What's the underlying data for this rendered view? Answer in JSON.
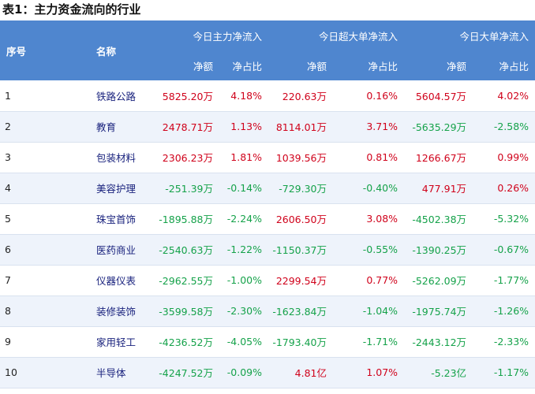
{
  "title": "表1：主力资金流向的行业",
  "colors": {
    "header_bg": "#4f86cf",
    "positive": "#d0021b",
    "negative": "#15a24a",
    "name_text": "#1a237e"
  },
  "header": {
    "index": "序号",
    "name": "名称",
    "groups": [
      "今日主力净流入",
      "今日超大单净流入",
      "今日大单净流入"
    ],
    "sub": [
      "净额",
      "净占比"
    ]
  },
  "rows": [
    {
      "idx": "1",
      "name": "铁路公路",
      "main_net": "5825.20万",
      "main_pct": "4.18%",
      "super_net": "220.63万",
      "super_pct": "0.16%",
      "big_net": "5604.57万",
      "big_pct": "4.02%"
    },
    {
      "idx": "2",
      "name": "教育",
      "main_net": "2478.71万",
      "main_pct": "1.13%",
      "super_net": "8114.01万",
      "super_pct": "3.71%",
      "big_net": "-5635.29万",
      "big_pct": "-2.58%"
    },
    {
      "idx": "3",
      "name": "包装材料",
      "main_net": "2306.23万",
      "main_pct": "1.81%",
      "super_net": "1039.56万",
      "super_pct": "0.81%",
      "big_net": "1266.67万",
      "big_pct": "0.99%"
    },
    {
      "idx": "4",
      "name": "美容护理",
      "main_net": "-251.39万",
      "main_pct": "-0.14%",
      "super_net": "-729.30万",
      "super_pct": "-0.40%",
      "big_net": "477.91万",
      "big_pct": "0.26%"
    },
    {
      "idx": "5",
      "name": "珠宝首饰",
      "main_net": "-1895.88万",
      "main_pct": "-2.24%",
      "super_net": "2606.50万",
      "super_pct": "3.08%",
      "big_net": "-4502.38万",
      "big_pct": "-5.32%"
    },
    {
      "idx": "6",
      "name": "医药商业",
      "main_net": "-2540.63万",
      "main_pct": "-1.22%",
      "super_net": "-1150.37万",
      "super_pct": "-0.55%",
      "big_net": "-1390.25万",
      "big_pct": "-0.67%"
    },
    {
      "idx": "7",
      "name": "仪器仪表",
      "main_net": "-2962.55万",
      "main_pct": "-1.00%",
      "super_net": "2299.54万",
      "super_pct": "0.77%",
      "big_net": "-5262.09万",
      "big_pct": "-1.77%"
    },
    {
      "idx": "8",
      "name": "装修装饰",
      "main_net": "-3599.58万",
      "main_pct": "-2.30%",
      "super_net": "-1623.84万",
      "super_pct": "-1.04%",
      "big_net": "-1975.74万",
      "big_pct": "-1.26%"
    },
    {
      "idx": "9",
      "name": "家用轻工",
      "main_net": "-4236.52万",
      "main_pct": "-4.05%",
      "super_net": "-1793.40万",
      "super_pct": "-1.71%",
      "big_net": "-2443.12万",
      "big_pct": "-2.33%"
    },
    {
      "idx": "10",
      "name": "半导体",
      "main_net": "-4247.52万",
      "main_pct": "-0.09%",
      "super_net": "4.81亿",
      "super_pct": "1.07%",
      "big_net": "-5.23亿",
      "big_pct": "-1.17%"
    }
  ]
}
